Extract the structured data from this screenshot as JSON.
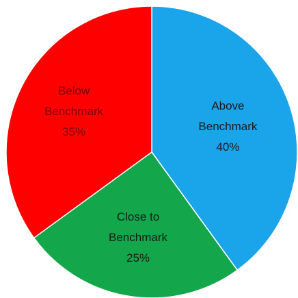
{
  "chart_data": {
    "type": "pie",
    "slices": [
      {
        "label_lines": [
          "Above",
          "Benchmark",
          "40%"
        ],
        "value": 40,
        "color": "#1aa5ea",
        "text_color": "#1a1a1a"
      },
      {
        "label_lines": [
          "Close to",
          "Benchmark",
          "25%"
        ],
        "value": 25,
        "color": "#14a64a",
        "text_color": "#1a1a1a"
      },
      {
        "label_lines": [
          "Below",
          "Benchmark",
          "35%"
        ],
        "value": 35,
        "color": "#ff0000",
        "text_color": "#7a0000"
      }
    ],
    "start_angle_deg": 0,
    "direction": "clockwise",
    "edge_color": "#ffffff",
    "legend": "none"
  }
}
